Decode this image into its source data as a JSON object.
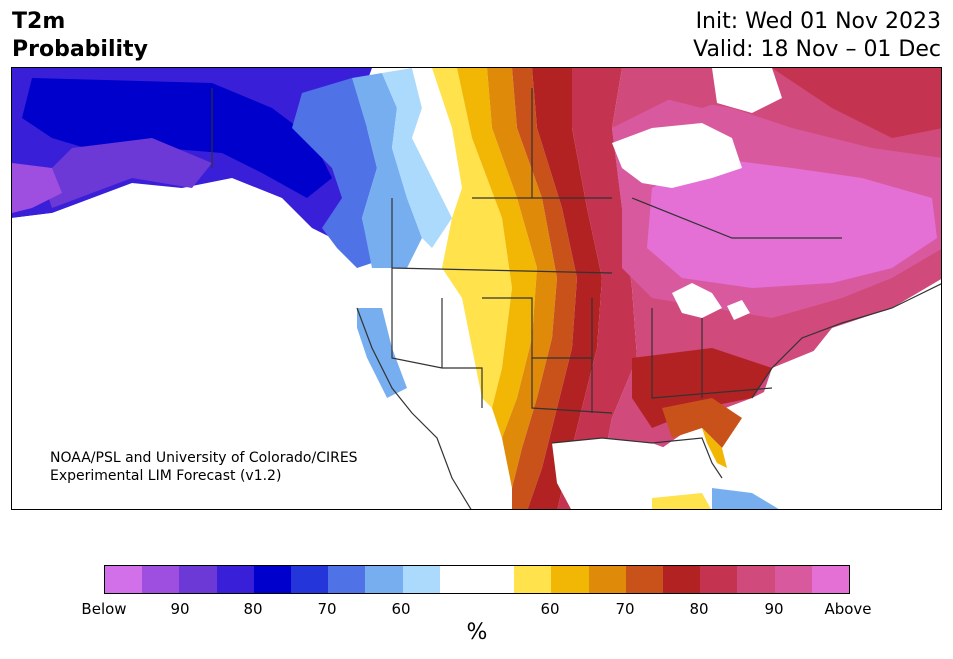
{
  "header": {
    "title_line1": "T2m",
    "title_line2": "Probability",
    "init": "Init: Wed 01 Nov 2023",
    "valid": "Valid: 18 Nov – 01 Dec"
  },
  "map": {
    "credit_line1": "NOAA/PSL and University of Colorado/CIRES",
    "credit_line2": "Experimental LIM Forecast (v1.2)"
  },
  "colorbar": {
    "colors": [
      "#d270ea",
      "#9e4fdf",
      "#6c38d6",
      "#3a1fd8",
      "#0000cc",
      "#2435da",
      "#4f72e6",
      "#77aef0",
      "#acdafc",
      "#ffffff",
      "#ffffff",
      "#ffe24c",
      "#f2b705",
      "#e08a0a",
      "#c9521a",
      "#b22222",
      "#c43350",
      "#d04a7c",
      "#d9599f",
      "#e470d6"
    ],
    "tick_labels": [
      "Below",
      "90",
      "80",
      "70",
      "60",
      "60",
      "70",
      "80",
      "90",
      "Above"
    ],
    "unit": "%"
  }
}
